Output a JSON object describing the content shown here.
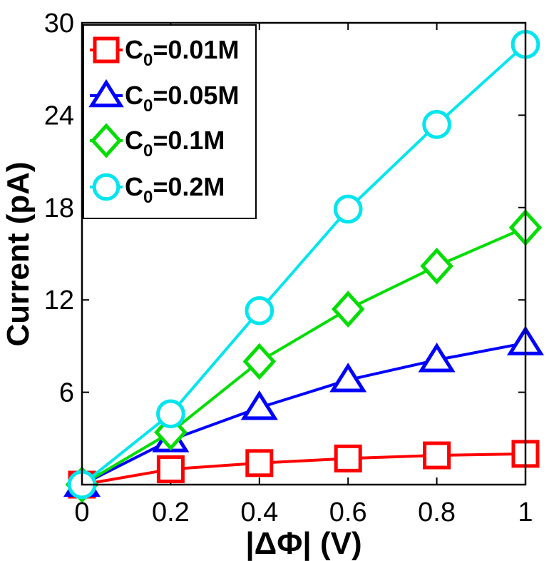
{
  "chart_data": {
    "type": "line",
    "title": "",
    "xlabel": "|ΔΦ| (V)",
    "ylabel": "Current (pA)",
    "xlim": [
      0,
      1
    ],
    "ylim": [
      0,
      30
    ],
    "xticks": [
      0,
      0.2,
      0.4,
      0.6,
      0.8,
      1
    ],
    "xtick_labels": [
      "0",
      "0.2",
      "0.4",
      "0.6",
      "0.8",
      "1"
    ],
    "yticks": [
      6,
      12,
      18,
      24,
      30
    ],
    "ytick_labels": [
      "6",
      "12",
      "18",
      "24",
      "30"
    ],
    "grid": false,
    "legend_position": "top-left",
    "x": [
      0,
      0.2,
      0.4,
      0.6,
      0.8,
      1
    ],
    "series": [
      {
        "name": "C0=0.01M",
        "label_main": "C",
        "label_sub": "0",
        "label_rest": "=0.01M",
        "color": "#ff0000",
        "marker": "square",
        "values": [
          0,
          1.0,
          1.4,
          1.7,
          1.9,
          2.0
        ]
      },
      {
        "name": "C0=0.05M",
        "label_main": "C",
        "label_sub": "0",
        "label_rest": "=0.05M",
        "color": "#0000ff",
        "marker": "triangle",
        "values": [
          0,
          2.9,
          5.0,
          6.8,
          8.1,
          9.2
        ]
      },
      {
        "name": "C0=0.1M",
        "label_main": "C",
        "label_sub": "0",
        "label_rest": "=0.1M",
        "color": "#00dd00",
        "marker": "diamond",
        "values": [
          0,
          3.4,
          8.0,
          11.4,
          14.2,
          16.7
        ]
      },
      {
        "name": "C0=0.2M",
        "label_main": "C",
        "label_sub": "0",
        "label_rest": "=0.2M",
        "color": "#00e5ee",
        "marker": "circle",
        "values": [
          0,
          4.6,
          11.3,
          17.9,
          23.4,
          28.6
        ]
      }
    ]
  }
}
